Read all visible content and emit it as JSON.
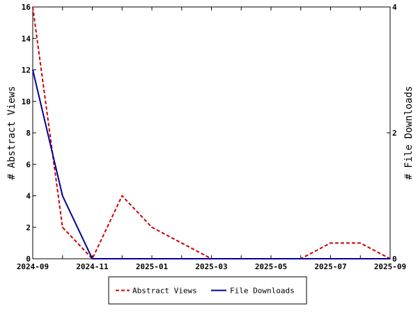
{
  "chart_data": {
    "type": "line",
    "x": [
      "2024-09",
      "2024-10",
      "2024-11",
      "2024-12",
      "2025-01",
      "2025-02",
      "2025-03",
      "2025-04",
      "2025-05",
      "2025-06",
      "2025-07",
      "2025-08",
      "2025-09"
    ],
    "x_tick_labels": [
      "2024-09",
      "2024-11",
      "2025-01",
      "2025-03",
      "2025-05",
      "2025-07",
      "2025-09"
    ],
    "y_left": {
      "label": "# Abstract Views",
      "ylim": [
        0,
        16
      ],
      "ticks": [
        "0",
        "2",
        "4",
        "6",
        "8",
        "10",
        "12",
        "14",
        "16"
      ]
    },
    "y_right": {
      "label": "# File Downloads",
      "ylim": [
        0,
        4
      ],
      "ticks": [
        "0",
        "2",
        "4"
      ]
    },
    "series": [
      {
        "name": "Abstract Views",
        "axis": "left",
        "color": "#cc0000",
        "style": "dashed",
        "values": [
          16,
          2,
          0,
          4,
          2,
          1,
          0,
          0,
          0,
          0,
          1,
          1,
          0
        ]
      },
      {
        "name": "File Downloads",
        "axis": "right",
        "color": "#000099",
        "style": "solid",
        "values": [
          3,
          1,
          0,
          0,
          0,
          0,
          0,
          0,
          0,
          0,
          0,
          0,
          0
        ]
      }
    ],
    "legend": {
      "placement": "bottom-center"
    },
    "grid": false
  }
}
